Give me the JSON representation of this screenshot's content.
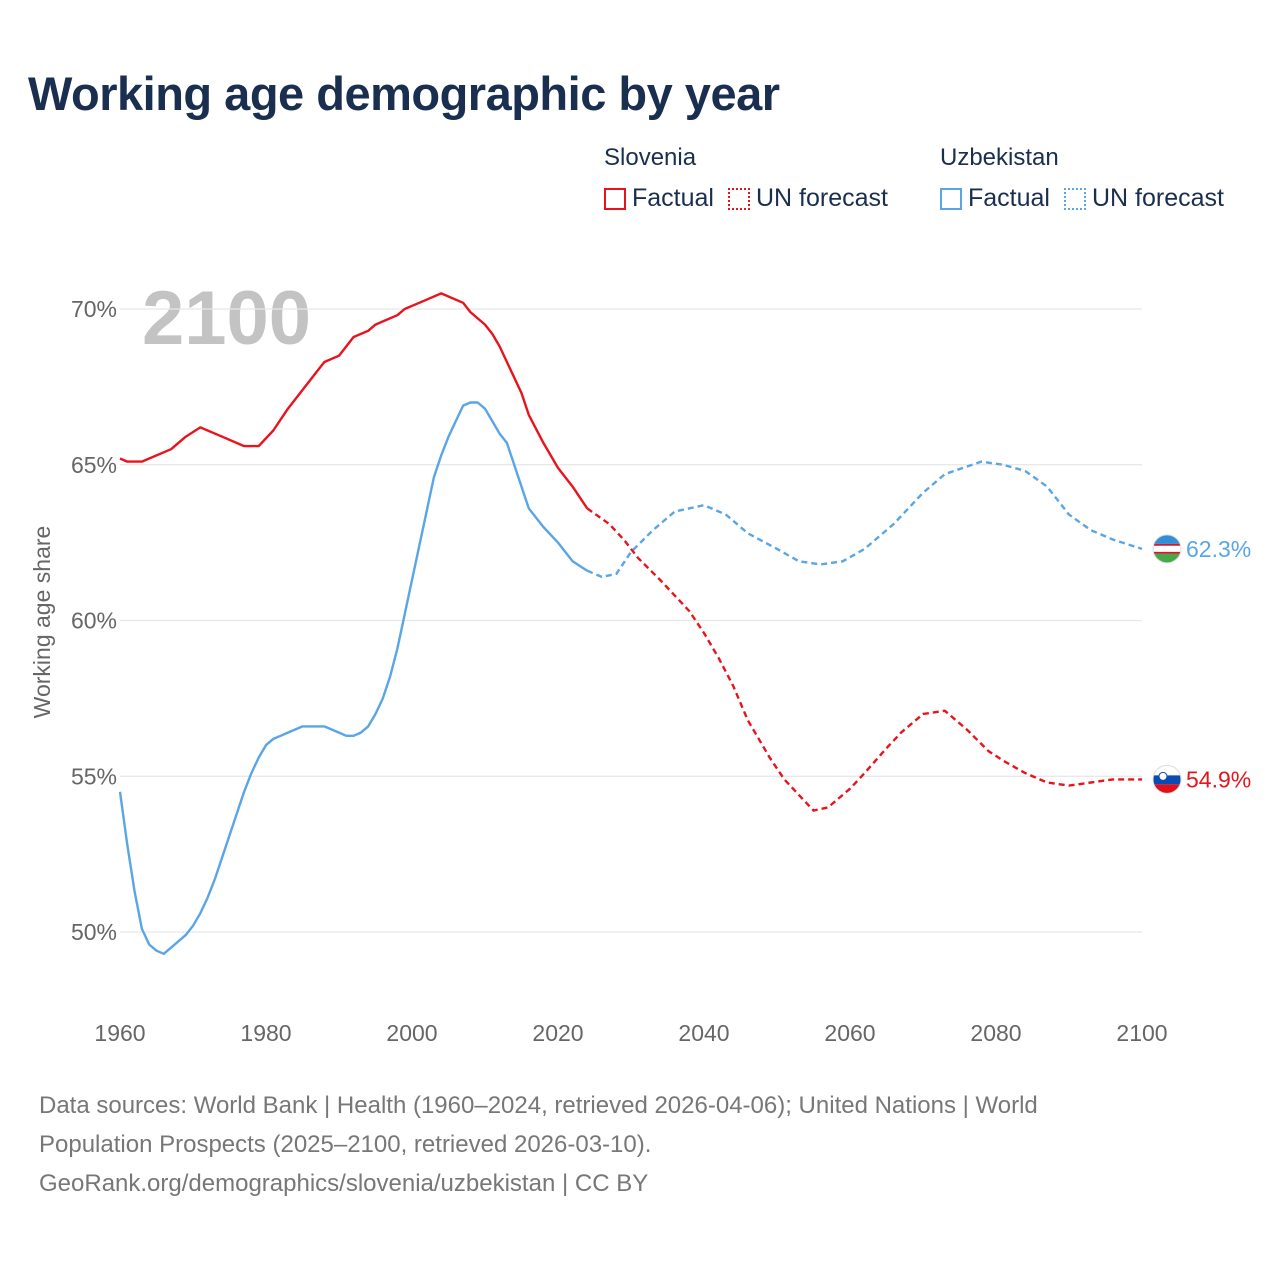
{
  "title": "Working age demographic by year",
  "legend": {
    "groups": [
      {
        "name": "Slovenia",
        "factual": "Factual",
        "forecast": "UN forecast"
      },
      {
        "name": "Uzbekistan",
        "factual": "Factual",
        "forecast": "UN forecast"
      }
    ]
  },
  "footer": {
    "line1": "Data sources: World Bank | Health (1960–2024, retrieved 2026-04-06); United Nations | World",
    "line2": "Population Prospects (2025–2100, retrieved 2026-03-10).",
    "line3": "GeoRank.org/demographics/slovenia/uzbekistan | CC BY"
  },
  "chart_data": {
    "type": "line",
    "year_watermark": "2100",
    "ylabel": "Working age share",
    "xlim": [
      1960,
      2100
    ],
    "ylim": [
      48,
      72
    ],
    "y_ticks": [
      50,
      55,
      60,
      65,
      70
    ],
    "y_tick_labels": [
      "50%",
      "55%",
      "60%",
      "65%",
      "70%"
    ],
    "x_ticks": [
      1960,
      1980,
      2000,
      2020,
      2040,
      2060,
      2080,
      2100
    ],
    "x_tick_labels": [
      "1960",
      "1980",
      "2000",
      "2020",
      "2040",
      "2060",
      "2080",
      "2100"
    ],
    "grid": true,
    "factual_end_year": 2024,
    "series": [
      {
        "name": "Slovenia",
        "color": "#e8141d",
        "end_label": "54.9%",
        "x": [
          1960,
          1961,
          1963,
          1967,
          1969,
          1971,
          1974,
          1977,
          1979,
          1981,
          1983,
          1985,
          1987,
          1988,
          1990,
          1991,
          1992,
          1994,
          1995,
          1998,
          1999,
          2001,
          2002,
          2004,
          2007,
          2008,
          2010,
          2011,
          2012,
          2014,
          2015,
          2016,
          2018,
          2020,
          2022,
          2024,
          2027,
          2029,
          2031,
          2034,
          2036,
          2038,
          2040,
          2042,
          2044,
          2046,
          2049,
          2051,
          2055,
          2057,
          2060,
          2062,
          2065,
          2067,
          2070,
          2073,
          2076,
          2079,
          2081,
          2084,
          2087,
          2090,
          2093,
          2096,
          2100
        ],
        "y": [
          65.2,
          65.1,
          65.1,
          65.5,
          65.9,
          66.2,
          65.9,
          65.6,
          65.6,
          66.1,
          66.8,
          67.4,
          68.0,
          68.3,
          68.5,
          68.8,
          69.1,
          69.3,
          69.5,
          69.8,
          70.0,
          70.2,
          70.3,
          70.5,
          70.2,
          69.9,
          69.5,
          69.2,
          68.8,
          67.8,
          67.3,
          66.6,
          65.7,
          64.9,
          64.3,
          63.6,
          63.1,
          62.6,
          62.0,
          61.3,
          60.8,
          60.3,
          59.6,
          58.8,
          57.9,
          56.8,
          55.6,
          54.9,
          53.9,
          54.0,
          54.6,
          55.1,
          55.9,
          56.4,
          57.0,
          57.1,
          56.5,
          55.8,
          55.5,
          55.1,
          54.8,
          54.7,
          54.8,
          54.9,
          54.9
        ]
      },
      {
        "name": "Uzbekistan",
        "color": "#5aa5e6",
        "end_label": "62.3%",
        "x": [
          1960,
          1961,
          1962,
          1963,
          1964,
          1965,
          1966,
          1967,
          1968,
          1969,
          1970,
          1971,
          1972,
          1973,
          1974,
          1975,
          1976,
          1977,
          1978,
          1979,
          1980,
          1981,
          1982,
          1983,
          1984,
          1985,
          1986,
          1987,
          1988,
          1989,
          1990,
          1991,
          1992,
          1993,
          1994,
          1995,
          1996,
          1997,
          1998,
          1999,
          2000,
          2001,
          2002,
          2003,
          2004,
          2005,
          2006,
          2007,
          2008,
          2009,
          2010,
          2011,
          2012,
          2013,
          2014,
          2015,
          2016,
          2018,
          2020,
          2022,
          2024,
          2026,
          2028,
          2030,
          2033,
          2036,
          2040,
          2043,
          2046,
          2050,
          2053,
          2056,
          2059,
          2062,
          2066,
          2070,
          2073,
          2078,
          2081,
          2084,
          2087,
          2090,
          2093,
          2096,
          2100
        ],
        "y": [
          54.5,
          52.8,
          51.3,
          50.1,
          49.6,
          49.4,
          49.3,
          49.5,
          49.7,
          49.9,
          50.2,
          50.6,
          51.1,
          51.7,
          52.4,
          53.1,
          53.8,
          54.5,
          55.1,
          55.6,
          56.0,
          56.2,
          56.3,
          56.4,
          56.5,
          56.6,
          56.6,
          56.6,
          56.6,
          56.5,
          56.4,
          56.3,
          56.3,
          56.4,
          56.6,
          57.0,
          57.5,
          58.2,
          59.1,
          60.2,
          61.3,
          62.4,
          63.5,
          64.6,
          65.3,
          65.9,
          66.4,
          66.9,
          67.0,
          67.0,
          66.8,
          66.4,
          66.0,
          65.7,
          65.0,
          64.3,
          63.6,
          63.0,
          62.5,
          61.9,
          61.6,
          61.4,
          61.5,
          62.2,
          62.9,
          63.5,
          63.7,
          63.4,
          62.8,
          62.3,
          61.9,
          61.8,
          61.9,
          62.3,
          63.1,
          64.1,
          64.7,
          65.1,
          65.0,
          64.8,
          64.3,
          63.4,
          62.9,
          62.6,
          62.3
        ]
      }
    ]
  }
}
